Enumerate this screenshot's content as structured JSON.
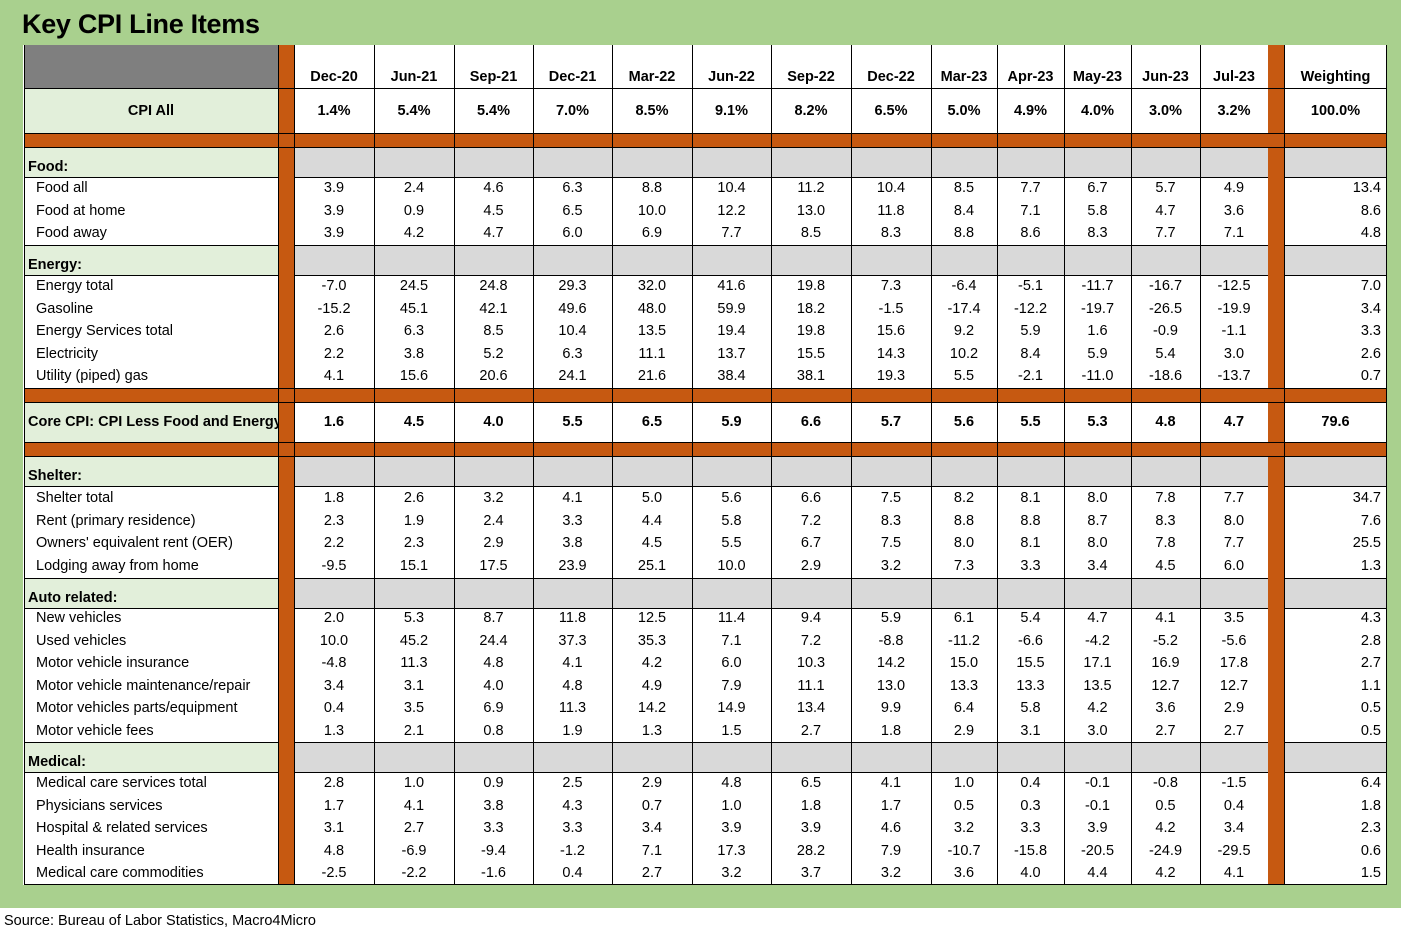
{
  "title": "Key CPI Line Items",
  "columns": [
    "Dec-20",
    "Jun-21",
    "Sep-21",
    "Dec-21",
    "Mar-22",
    "Jun-22",
    "Sep-22",
    "Dec-22",
    "Mar-23",
    "Apr-23",
    "May-23",
    "Jun-23",
    "Jul-23"
  ],
  "weight_header": "Weighting",
  "cpi_all": {
    "label": "CPI All",
    "values": [
      "1.4%",
      "5.4%",
      "5.4%",
      "7.0%",
      "8.5%",
      "9.1%",
      "8.2%",
      "6.5%",
      "5.0%",
      "4.9%",
      "4.0%",
      "3.0%",
      "3.2%"
    ],
    "weight": "100.0%"
  },
  "core": {
    "label": "Core CPI: CPI Less Food and Energy",
    "values": [
      "1.6",
      "4.5",
      "4.0",
      "5.5",
      "6.5",
      "5.9",
      "6.6",
      "5.7",
      "5.6",
      "5.5",
      "5.3",
      "4.8",
      "4.7"
    ],
    "weight": "79.6"
  },
  "groups": [
    {
      "name": "Food:",
      "rows": [
        {
          "label": "Food all",
          "values": [
            "3.9",
            "2.4",
            "4.6",
            "6.3",
            "8.8",
            "10.4",
            "11.2",
            "10.4",
            "8.5",
            "7.7",
            "6.7",
            "5.7",
            "4.9"
          ],
          "weight": "13.4"
        },
        {
          "label": "Food at home",
          "values": [
            "3.9",
            "0.9",
            "4.5",
            "6.5",
            "10.0",
            "12.2",
            "13.0",
            "11.8",
            "8.4",
            "7.1",
            "5.8",
            "4.7",
            "3.6"
          ],
          "weight": "8.6"
        },
        {
          "label": "Food away",
          "values": [
            "3.9",
            "4.2",
            "4.7",
            "6.0",
            "6.9",
            "7.7",
            "8.5",
            "8.3",
            "8.8",
            "8.6",
            "8.3",
            "7.7",
            "7.1"
          ],
          "weight": "4.8"
        }
      ]
    },
    {
      "name": "Energy:",
      "rows": [
        {
          "label": "Energy total",
          "values": [
            "-7.0",
            "24.5",
            "24.8",
            "29.3",
            "32.0",
            "41.6",
            "19.8",
            "7.3",
            "-6.4",
            "-5.1",
            "-11.7",
            "-16.7",
            "-12.5"
          ],
          "weight": "7.0"
        },
        {
          "label": "Gasoline",
          "values": [
            "-15.2",
            "45.1",
            "42.1",
            "49.6",
            "48.0",
            "59.9",
            "18.2",
            "-1.5",
            "-17.4",
            "-12.2",
            "-19.7",
            "-26.5",
            "-19.9"
          ],
          "weight": "3.4"
        },
        {
          "label": "Energy Services total",
          "values": [
            "2.6",
            "6.3",
            "8.5",
            "10.4",
            "13.5",
            "19.4",
            "19.8",
            "15.6",
            "9.2",
            "5.9",
            "1.6",
            "-0.9",
            "-1.1"
          ],
          "weight": "3.3"
        },
        {
          "label": "Electricity",
          "values": [
            "2.2",
            "3.8",
            "5.2",
            "6.3",
            "11.1",
            "13.7",
            "15.5",
            "14.3",
            "10.2",
            "8.4",
            "5.9",
            "5.4",
            "3.0"
          ],
          "weight": "2.6"
        },
        {
          "label": "Utility (piped) gas",
          "values": [
            "4.1",
            "15.6",
            "20.6",
            "24.1",
            "21.6",
            "38.4",
            "38.1",
            "19.3",
            "5.5",
            "-2.1",
            "-11.0",
            "-18.6",
            "-13.7"
          ],
          "weight": "0.7"
        }
      ]
    },
    {
      "name": "Shelter:",
      "rows": [
        {
          "label": "Shelter total",
          "values": [
            "1.8",
            "2.6",
            "3.2",
            "4.1",
            "5.0",
            "5.6",
            "6.6",
            "7.5",
            "8.2",
            "8.1",
            "8.0",
            "7.8",
            "7.7"
          ],
          "weight": "34.7"
        },
        {
          "label": "Rent (primary residence)",
          "values": [
            "2.3",
            "1.9",
            "2.4",
            "3.3",
            "4.4",
            "5.8",
            "7.2",
            "8.3",
            "8.8",
            "8.8",
            "8.7",
            "8.3",
            "8.0"
          ],
          "weight": "7.6"
        },
        {
          "label": "Owners' equivalent rent (OER)",
          "values": [
            "2.2",
            "2.3",
            "2.9",
            "3.8",
            "4.5",
            "5.5",
            "6.7",
            "7.5",
            "8.0",
            "8.1",
            "8.0",
            "7.8",
            "7.7"
          ],
          "weight": "25.5"
        },
        {
          "label": "Lodging away from home",
          "values": [
            "-9.5",
            "15.1",
            "17.5",
            "23.9",
            "25.1",
            "10.0",
            "2.9",
            "3.2",
            "7.3",
            "3.3",
            "3.4",
            "4.5",
            "6.0"
          ],
          "weight": "1.3"
        }
      ]
    },
    {
      "name": "Auto related:",
      "rows": [
        {
          "label": "New vehicles",
          "values": [
            "2.0",
            "5.3",
            "8.7",
            "11.8",
            "12.5",
            "11.4",
            "9.4",
            "5.9",
            "6.1",
            "5.4",
            "4.7",
            "4.1",
            "3.5"
          ],
          "weight": "4.3"
        },
        {
          "label": "Used vehicles",
          "values": [
            "10.0",
            "45.2",
            "24.4",
            "37.3",
            "35.3",
            "7.1",
            "7.2",
            "-8.8",
            "-11.2",
            "-6.6",
            "-4.2",
            "-5.2",
            "-5.6"
          ],
          "weight": "2.8"
        },
        {
          "label": "Motor vehicle insurance",
          "values": [
            "-4.8",
            "11.3",
            "4.8",
            "4.1",
            "4.2",
            "6.0",
            "10.3",
            "14.2",
            "15.0",
            "15.5",
            "17.1",
            "16.9",
            "17.8"
          ],
          "weight": "2.7"
        },
        {
          "label": "Motor vehicle maintenance/repair",
          "values": [
            "3.4",
            "3.1",
            "4.0",
            "4.8",
            "4.9",
            "7.9",
            "11.1",
            "13.0",
            "13.3",
            "13.3",
            "13.5",
            "12.7",
            "12.7"
          ],
          "weight": "1.1"
        },
        {
          "label": "Motor vehicles parts/equipment",
          "values": [
            "0.4",
            "3.5",
            "6.9",
            "11.3",
            "14.2",
            "14.9",
            "13.4",
            "9.9",
            "6.4",
            "5.8",
            "4.2",
            "3.6",
            "2.9"
          ],
          "weight": "0.5"
        },
        {
          "label": "Motor vehicle fees",
          "values": [
            "1.3",
            "2.1",
            "0.8",
            "1.9",
            "1.3",
            "1.5",
            "2.7",
            "1.8",
            "2.9",
            "3.1",
            "3.0",
            "2.7",
            "2.7"
          ],
          "weight": "0.5"
        }
      ]
    },
    {
      "name": "Medical:",
      "rows": [
        {
          "label": "Medical care services total",
          "values": [
            "2.8",
            "1.0",
            "0.9",
            "2.5",
            "2.9",
            "4.8",
            "6.5",
            "4.1",
            "1.0",
            "0.4",
            "-0.1",
            "-0.8",
            "-1.5"
          ],
          "weight": "6.4"
        },
        {
          "label": "Physicians services",
          "values": [
            "1.7",
            "4.1",
            "3.8",
            "4.3",
            "0.7",
            "1.0",
            "1.8",
            "1.7",
            "0.5",
            "0.3",
            "-0.1",
            "0.5",
            "0.4"
          ],
          "weight": "1.8"
        },
        {
          "label": "Hospital & related services",
          "values": [
            "3.1",
            "2.7",
            "3.3",
            "3.3",
            "3.4",
            "3.9",
            "3.9",
            "4.6",
            "3.2",
            "3.3",
            "3.9",
            "4.2",
            "3.4"
          ],
          "weight": "2.3"
        },
        {
          "label": "Health insurance",
          "values": [
            "4.8",
            "-6.9",
            "-9.4",
            "-1.2",
            "7.1",
            "17.3",
            "28.2",
            "7.9",
            "-10.7",
            "-15.8",
            "-20.5",
            "-24.9",
            "-29.5"
          ],
          "weight": "0.6"
        },
        {
          "label": "Medical care commodities",
          "values": [
            "-2.5",
            "-2.2",
            "-1.6",
            "0.4",
            "2.7",
            "3.2",
            "3.7",
            "3.2",
            "3.6",
            "4.0",
            "4.4",
            "4.2",
            "4.1"
          ],
          "weight": "1.5"
        }
      ]
    }
  ],
  "footer": "Source: Bureau of Labor Statistics, Macro4Micro",
  "colors": {
    "frame": "#a9d08e",
    "orange": "#c65911",
    "gray": "#d9d9d9",
    "dark": "#7f7f7f",
    "label_green": "#e2efda"
  }
}
